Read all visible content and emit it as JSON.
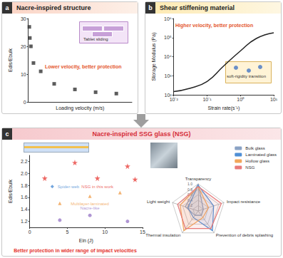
{
  "panels": [
    {
      "label": "a",
      "title": "Nacre-inspired structure"
    },
    {
      "label": "b",
      "title": "Shear stiffening material"
    },
    {
      "label": "c",
      "title": "Nacre-inspired SSG glass (NSG)"
    }
  ],
  "chart_data": [
    {
      "type": "scatter",
      "x": [
        0.1,
        0.15,
        0.25,
        0.5,
        1.2,
        2.5,
        4.5,
        6.5,
        8.5
      ],
      "values": [
        27,
        23,
        20,
        14,
        11,
        6.5,
        4.5,
        3.5,
        3
      ],
      "color": "#333333",
      "marker": "square",
      "xlabel": "Loading velocity (m/s)",
      "ylabel": "Edis/Ebulk",
      "xlim": [
        0,
        10
      ],
      "ylim": [
        0,
        30
      ],
      "yticks": [
        0,
        10,
        20,
        30
      ],
      "tick_labels": "y",
      "grid": false,
      "annotations": [
        "Lower velocity, better protection",
        "Tablet sliding"
      ]
    },
    {
      "type": "line",
      "x": [
        0.01,
        0.03,
        0.1,
        0.3,
        1,
        3,
        10
      ],
      "values": [
        150,
        220,
        500,
        3000,
        20000,
        90000,
        180000
      ],
      "color": "#222222",
      "log": true,
      "xlabel": "Strain rate(s⁻¹)",
      "ylabel": "Storage Modulus (Pa)",
      "xlim": [
        0.01,
        10
      ],
      "ylim": [
        100,
        1000000
      ],
      "xticks": [
        {
          "value": 0.01,
          "label": "10⁻²"
        },
        {
          "value": 0.1,
          "label": "10⁻¹"
        },
        {
          "value": 1,
          "label": "10⁰"
        },
        {
          "value": 10,
          "label": "10¹"
        }
      ],
      "yticks": [
        {
          "value": 100,
          "label": "10²"
        },
        {
          "value": 1000,
          "label": "10³"
        },
        {
          "value": 10000,
          "label": "10⁴"
        },
        {
          "value": 100000,
          "label": "10⁵"
        },
        {
          "value": 1000000,
          "label": "10⁶"
        }
      ],
      "grid": false,
      "annotations": [
        "Higher velocity, better protection",
        "soft-rigidity transition"
      ]
    },
    {
      "type": "scatter",
      "xlabel": "Ein (J)",
      "ylabel": "Edis/Ebulk",
      "xlim": [
        0,
        15
      ],
      "xticks": [
        0,
        5,
        10,
        15
      ],
      "ylim": [
        1.1,
        2.3
      ],
      "yticks": [
        1.2,
        1.4,
        1.6,
        1.8,
        {
          "value": 2,
          "label": "2.0"
        },
        2.2
      ],
      "grid": false,
      "series": [
        {
          "name": "NSG in this work",
          "color": "#e8413c",
          "marker": "star",
          "x": [
            2,
            6,
            9,
            13,
            14
          ],
          "values": [
            1.92,
            2.18,
            1.92,
            2.12,
            1.9
          ]
        },
        {
          "name": "Multilayer-laminated",
          "color": "#f0a050",
          "marker": "triangle",
          "x": [
            4,
            8,
            12
          ],
          "values": [
            1.5,
            1.62,
            1.68
          ]
        },
        {
          "name": "Spider-web",
          "color": "#4f8fd6",
          "marker": "diamond",
          "x": [
            3
          ],
          "values": [
            1.78
          ]
        },
        {
          "name": "Nacre-like",
          "color": "#9b7cc8",
          "marker": "circle",
          "x": [
            4,
            8,
            13
          ],
          "values": [
            1.22,
            1.3,
            1.2
          ]
        }
      ],
      "annotations": [
        "Better protection in wider range of impact velocities"
      ]
    },
    {
      "type": "radar",
      "categories": [
        "Transparency",
        "Light weight",
        "Thermal insulation",
        "Prevention of debris splashing",
        "Impact resistance"
      ],
      "ylim": [
        0,
        1
      ],
      "yticks": [
        0.2,
        0.4,
        0.6,
        0.8,
        {
          "value": 1,
          "label": "1.0"
        }
      ],
      "legend": "right",
      "series": [
        {
          "name": "Bulk glass",
          "color": "#8aa2c4",
          "values": [
            1.0,
            0.5,
            0.2,
            0.2,
            0.2
          ]
        },
        {
          "name": "Laminated glass",
          "color": "#4f8fd6",
          "values": [
            0.95,
            0.4,
            0.3,
            0.9,
            0.6
          ]
        },
        {
          "name": "Hollow glass",
          "color": "#f2a65a",
          "values": [
            0.9,
            0.7,
            0.9,
            0.3,
            0.4
          ]
        },
        {
          "name": "NSG",
          "color": "#e87a7a",
          "values": [
            0.9,
            0.8,
            0.8,
            0.8,
            0.9
          ]
        }
      ]
    }
  ]
}
